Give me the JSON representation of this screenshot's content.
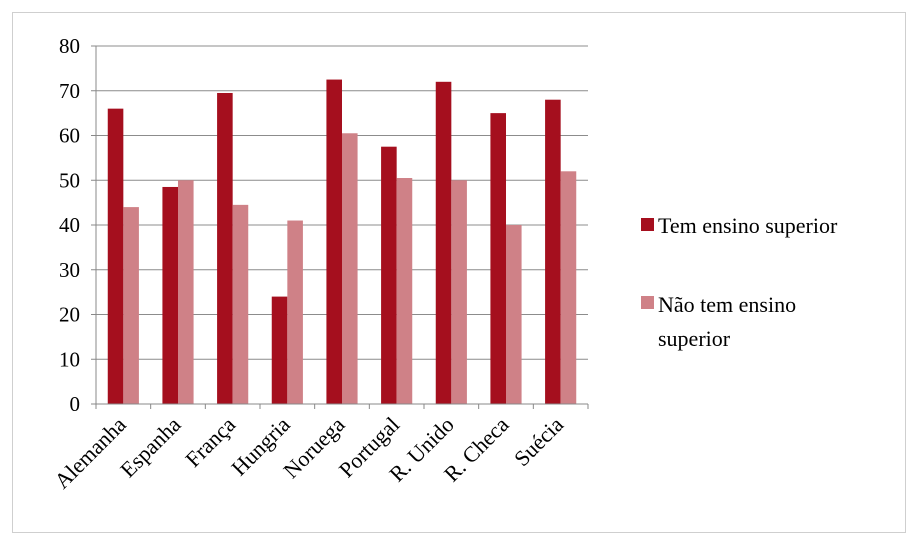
{
  "chart_data": {
    "type": "bar",
    "categories": [
      "Alemanha",
      "Espanha",
      "França",
      "Hungria",
      "Noruega",
      "Portugal",
      "R. Unido",
      "R. Checa",
      "Suécia"
    ],
    "series": [
      {
        "name": "Tem ensino superior",
        "color": "#a50f1e",
        "values": [
          66,
          48.5,
          69.5,
          24,
          72.5,
          57.5,
          72,
          65,
          68
        ]
      },
      {
        "name": "Não tem ensino superior",
        "color": "#cf8187",
        "values": [
          44,
          50,
          44.5,
          41,
          60.5,
          50.5,
          50,
          40,
          52
        ]
      }
    ],
    "ylim": [
      0,
      80
    ],
    "yticks": [
      "0",
      "10",
      "20",
      "30",
      "40",
      "50",
      "60",
      "70",
      "80"
    ],
    "grid": true,
    "legend": "right"
  },
  "legend": {
    "item1_line1": "Tem ensino superior",
    "item2_line1": "Não tem ensino",
    "item2_line2": "superior"
  }
}
